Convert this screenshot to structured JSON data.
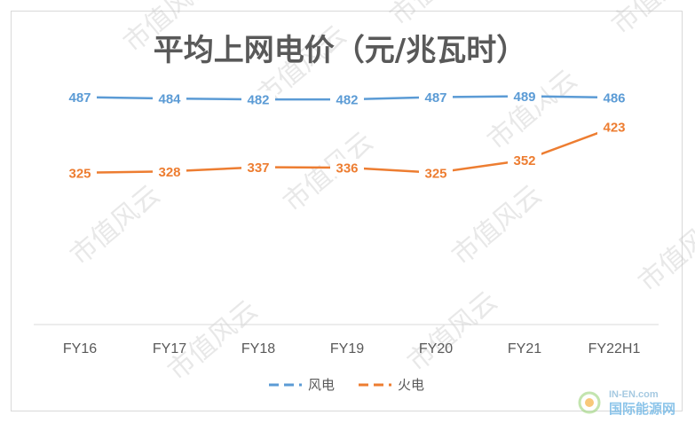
{
  "chart_data": {
    "type": "line",
    "title": "平均上网电价（元/兆瓦时）",
    "categories": [
      "FY16",
      "FY17",
      "FY18",
      "FY19",
      "FY20",
      "FY21",
      "FY22H1"
    ],
    "series": [
      {
        "name": "风电",
        "color": "#5b9bd5",
        "values": [
          487,
          484,
          482,
          482,
          487,
          489,
          486
        ]
      },
      {
        "name": "火电",
        "color": "#ed7d31",
        "values": [
          325,
          328,
          337,
          336,
          325,
          352,
          423
        ]
      }
    ],
    "ylim": [
      0,
      600
    ],
    "grid": false,
    "legend": "bottom"
  },
  "watermark": "市值风云",
  "logo": {
    "top": "IN-EN.com",
    "bottom": "国际能源网"
  }
}
